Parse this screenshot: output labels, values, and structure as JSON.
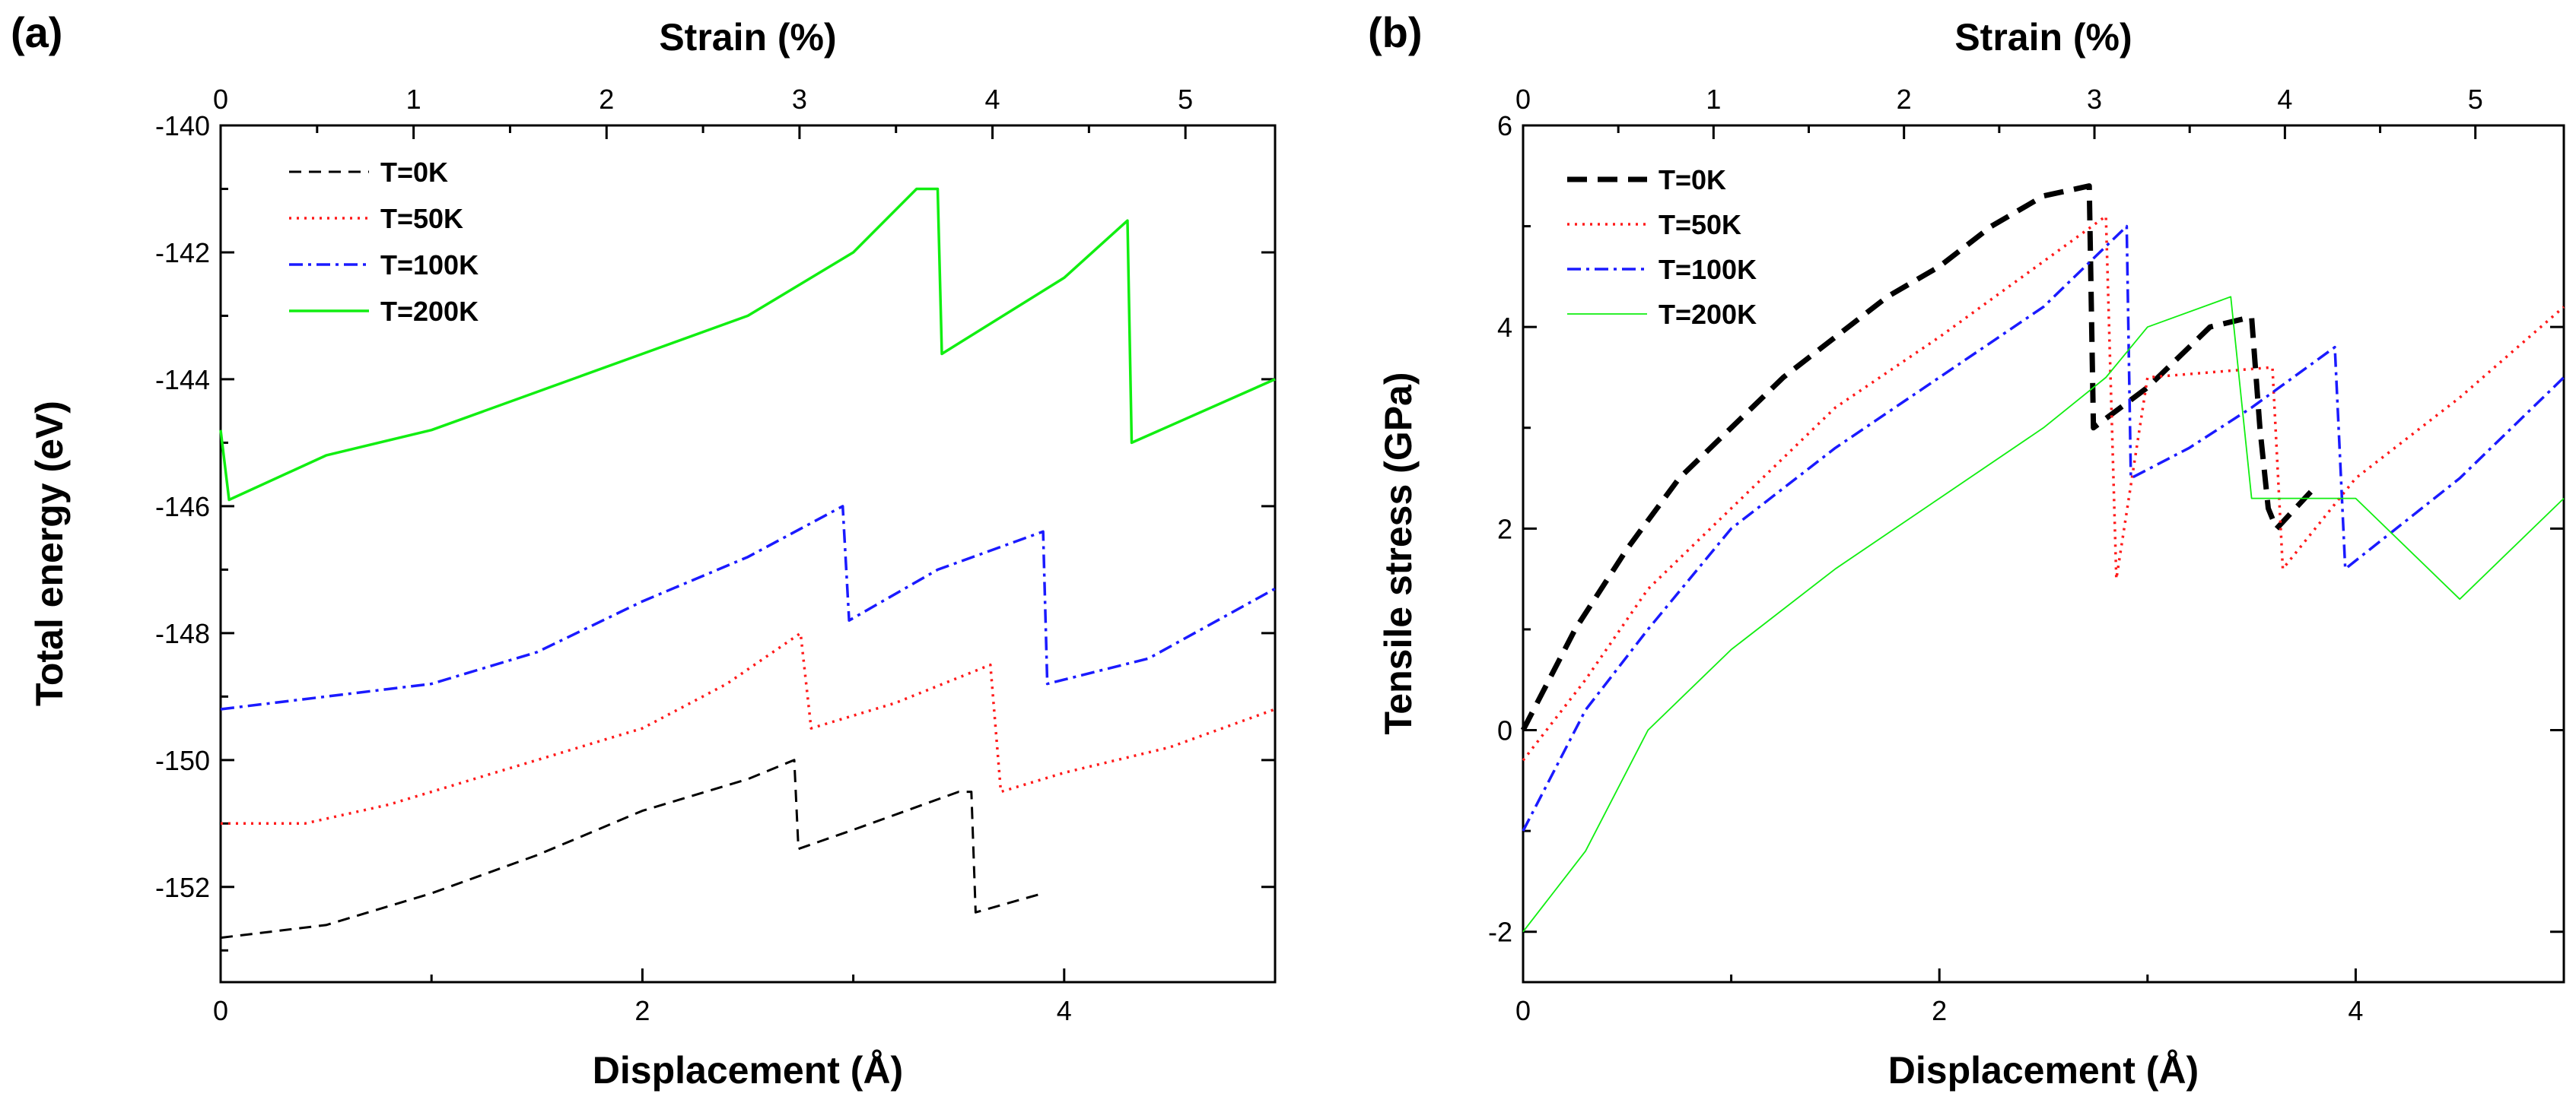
{
  "colors": {
    "T0K": "#000000",
    "T50K": "#ff1a1a",
    "T100K": "#1a1aff",
    "T200K": "#11ee11"
  },
  "chart_data": [
    {
      "panel": "(a)",
      "type": "line",
      "xlabel": "Displacement (Å)",
      "ylabel": "Total energy (eV)",
      "top_xlabel": "Strain (%)",
      "xlim": [
        0,
        5
      ],
      "ylim": [
        -153.5,
        -140
      ],
      "xticks": [
        "0",
        "2",
        "4"
      ],
      "yticks": [
        "-140",
        "-142",
        "-144",
        "-146",
        "-148",
        "-150",
        "-152"
      ],
      "top_ticks": [
        "0",
        "1",
        "2",
        "3",
        "4",
        "5"
      ],
      "legend": [
        "T=0K",
        "T=50K",
        "T=100K",
        "T=200K"
      ],
      "legend_position": "top-left",
      "series": [
        {
          "name": "T=0K",
          "style": "dashed",
          "x": [
            0,
            0.5,
            1.0,
            1.5,
            2.0,
            2.5,
            2.72,
            2.74,
            3.0,
            3.5,
            3.56,
            3.58,
            3.9
          ],
          "y": [
            -152.8,
            -152.6,
            -152.1,
            -151.5,
            -150.8,
            -150.3,
            -150.0,
            -151.4,
            -151.1,
            -150.5,
            -150.5,
            -152.4,
            -152.1
          ]
        },
        {
          "name": "T=50K",
          "style": "dotted",
          "x": [
            0,
            0.4,
            0.8,
            1.2,
            1.6,
            2.0,
            2.4,
            2.75,
            2.8,
            3.2,
            3.65,
            3.7,
            4.0,
            4.5,
            5.0
          ],
          "y": [
            -151.0,
            -151.0,
            -150.7,
            -150.3,
            -149.9,
            -149.5,
            -148.8,
            -148.0,
            -149.5,
            -149.1,
            -148.5,
            -150.5,
            -150.2,
            -149.8,
            -149.2
          ]
        },
        {
          "name": "T=100K",
          "style": "dashdot",
          "x": [
            0,
            0.5,
            1.0,
            1.5,
            2.0,
            2.5,
            2.95,
            2.98,
            3.4,
            3.9,
            3.92,
            4.4,
            5.0
          ],
          "y": [
            -149.2,
            -149.0,
            -148.8,
            -148.3,
            -147.5,
            -146.8,
            -146.0,
            -147.8,
            -147.0,
            -146.4,
            -148.8,
            -148.4,
            -147.3
          ]
        },
        {
          "name": "T=200K",
          "style": "solid",
          "x": [
            0,
            0.04,
            0.5,
            1.0,
            1.5,
            2.0,
            2.5,
            3.0,
            3.3,
            3.4,
            3.42,
            4.0,
            4.3,
            4.32,
            5.0
          ],
          "y": [
            -144.8,
            -145.9,
            -145.2,
            -144.8,
            -144.2,
            -143.6,
            -143.0,
            -142.0,
            -141.0,
            -141.0,
            -143.6,
            -142.4,
            -141.5,
            -145.0,
            -144.0
          ]
        }
      ]
    },
    {
      "panel": "(b)",
      "type": "line",
      "xlabel": "Displacement (Å)",
      "ylabel": "Tensile stress (GPa)",
      "top_xlabel": "Strain (%)",
      "xlim": [
        0,
        5
      ],
      "ylim": [
        -2.5,
        6
      ],
      "xticks": [
        "0",
        "2",
        "4"
      ],
      "yticks": [
        "6",
        "4",
        "2",
        "0",
        "-2"
      ],
      "top_ticks": [
        "0",
        "1",
        "2",
        "3",
        "4",
        "5"
      ],
      "legend": [
        "T=0K",
        "T=50K",
        "T=100K",
        "T=200K"
      ],
      "legend_position": "top-left",
      "series": [
        {
          "name": "T=0K",
          "style": "bold-dashed",
          "x": [
            0,
            0.25,
            0.5,
            0.75,
            1.0,
            1.25,
            1.5,
            1.75,
            2.0,
            2.25,
            2.5,
            2.72,
            2.74,
            3.0,
            3.3,
            3.5,
            3.54,
            3.58,
            3.62,
            3.8
          ],
          "y": [
            0.0,
            1.0,
            1.8,
            2.5,
            3.0,
            3.5,
            3.9,
            4.3,
            4.6,
            5.0,
            5.3,
            5.4,
            3.0,
            3.4,
            4.0,
            4.1,
            3.0,
            2.2,
            2.0,
            2.4
          ]
        },
        {
          "name": "T=50K",
          "style": "dotted",
          "x": [
            0,
            0.3,
            0.6,
            1.0,
            1.5,
            2.0,
            2.4,
            2.8,
            2.85,
            3.0,
            3.6,
            3.65,
            4.0,
            4.5,
            5.0
          ],
          "y": [
            -0.3,
            0.5,
            1.4,
            2.2,
            3.2,
            3.9,
            4.5,
            5.1,
            1.5,
            3.5,
            3.6,
            1.6,
            2.5,
            3.3,
            4.2
          ]
        },
        {
          "name": "T=100K",
          "style": "dashdot",
          "x": [
            0,
            0.3,
            0.6,
            1.0,
            1.5,
            2.0,
            2.5,
            2.9,
            2.92,
            3.2,
            3.5,
            3.9,
            3.95,
            4.5,
            5.0
          ],
          "y": [
            -1.0,
            0.2,
            1.0,
            2.0,
            2.8,
            3.5,
            4.2,
            5.0,
            2.5,
            2.8,
            3.2,
            3.8,
            1.6,
            2.5,
            3.5
          ]
        },
        {
          "name": "T=200K",
          "style": "solid-thin",
          "x": [
            0,
            0.3,
            0.6,
            1.0,
            1.5,
            2.0,
            2.5,
            2.8,
            3.0,
            3.4,
            3.5,
            4.0,
            4.5,
            5.0
          ],
          "y": [
            -2.0,
            -1.2,
            0.0,
            0.8,
            1.6,
            2.3,
            3.0,
            3.5,
            4.0,
            4.3,
            2.3,
            2.3,
            1.3,
            2.3
          ]
        }
      ]
    }
  ]
}
